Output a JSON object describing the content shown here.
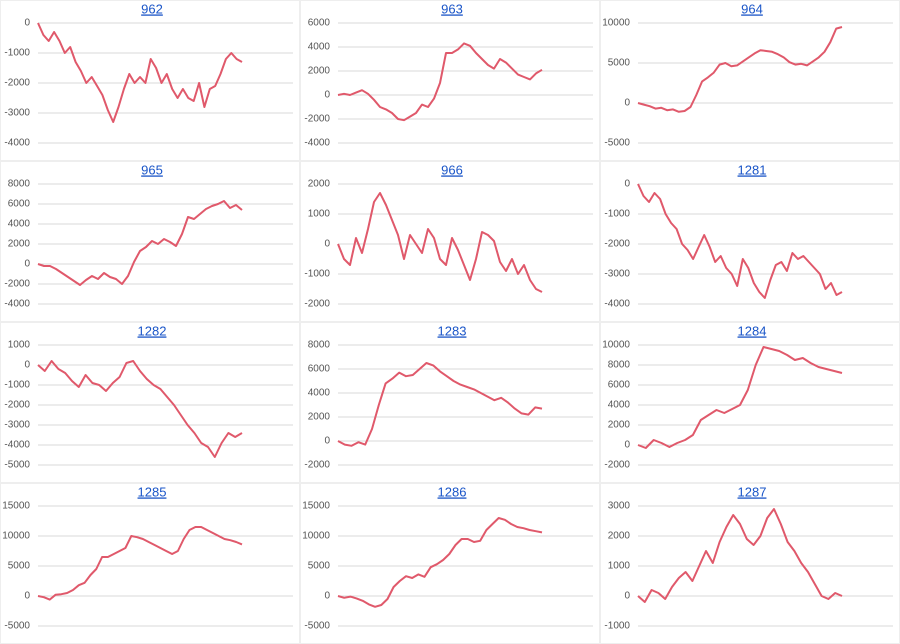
{
  "chart_data": [
    {
      "type": "line",
      "title": "962",
      "color": "#e0596b",
      "ylim": [
        -4000,
        0
      ],
      "yticks": [
        0,
        -1000,
        -2000,
        -3000,
        -4000
      ],
      "grid": true,
      "values": [
        0,
        -400,
        -600,
        -300,
        -600,
        -1000,
        -800,
        -1300,
        -1600,
        -2000,
        -1800,
        -2100,
        -2400,
        -2900,
        -3300,
        -2800,
        -2200,
        -1700,
        -2000,
        -1800,
        -2000,
        -1200,
        -1500,
        -2000,
        -1700,
        -2200,
        -2500,
        -2200,
        -2500,
        -2600,
        -2000,
        -2800,
        -2200,
        -2100,
        -1700,
        -1200,
        -1000,
        -1200,
        -1300
      ]
    },
    {
      "type": "line",
      "title": "963",
      "color": "#e0596b",
      "ylim": [
        -4000,
        6000
      ],
      "yticks": [
        6000,
        4000,
        2000,
        0,
        -2000,
        -4000
      ],
      "grid": true,
      "values": [
        0,
        100,
        0,
        200,
        400,
        100,
        -400,
        -1000,
        -1200,
        -1500,
        -2000,
        -2100,
        -1800,
        -1500,
        -800,
        -1000,
        -300,
        1000,
        3500,
        3500,
        3800,
        4300,
        4100,
        3500,
        3000,
        2500,
        2200,
        3000,
        2700,
        2200,
        1700,
        1500,
        1300,
        1800,
        2100
      ]
    },
    {
      "type": "line",
      "title": "964",
      "color": "#e0596b",
      "ylim": [
        -5000,
        10000
      ],
      "yticks": [
        10000,
        5000,
        0,
        -5000
      ],
      "grid": true,
      "values": [
        0,
        -200,
        -400,
        -700,
        -600,
        -900,
        -800,
        -1100,
        -1000,
        -500,
        1000,
        2700,
        3200,
        3800,
        4800,
        5000,
        4600,
        4700,
        5200,
        5700,
        6200,
        6600,
        6500,
        6400,
        6100,
        5700,
        5100,
        4800,
        4900,
        4700,
        5200,
        5700,
        6400,
        7600,
        9300,
        9500
      ]
    },
    {
      "type": "line",
      "title": "965",
      "color": "#e0596b",
      "ylim": [
        -4000,
        8000
      ],
      "yticks": [
        8000,
        6000,
        4000,
        2000,
        0,
        -2000,
        -4000
      ],
      "grid": true,
      "values": [
        0,
        -200,
        -200,
        -500,
        -900,
        -1300,
        -1700,
        -2100,
        -1600,
        -1200,
        -1500,
        -900,
        -1300,
        -1500,
        -2000,
        -1200,
        200,
        1300,
        1700,
        2300,
        2000,
        2500,
        2200,
        1800,
        3000,
        4700,
        4500,
        5000,
        5500,
        5800,
        6000,
        6300,
        5600,
        5900,
        5400
      ]
    },
    {
      "type": "line",
      "title": "966",
      "color": "#e0596b",
      "ylim": [
        -2000,
        2000
      ],
      "yticks": [
        2000,
        1000,
        0,
        -1000,
        -2000
      ],
      "grid": true,
      "values": [
        0,
        -500,
        -700,
        200,
        -300,
        500,
        1400,
        1700,
        1300,
        800,
        300,
        -500,
        300,
        0,
        -300,
        500,
        200,
        -500,
        -700,
        200,
        -200,
        -700,
        -1200,
        -500,
        400,
        300,
        100,
        -600,
        -900,
        -500,
        -1000,
        -700,
        -1200,
        -1500,
        -1600
      ]
    },
    {
      "type": "line",
      "title": "1281",
      "color": "#e0596b",
      "ylim": [
        -4000,
        0
      ],
      "yticks": [
        0,
        -1000,
        -2000,
        -3000,
        -4000
      ],
      "grid": true,
      "values": [
        0,
        -400,
        -600,
        -300,
        -500,
        -1000,
        -1300,
        -1500,
        -2000,
        -2200,
        -2500,
        -2100,
        -1700,
        -2100,
        -2600,
        -2400,
        -2800,
        -3000,
        -3400,
        -2500,
        -2800,
        -3300,
        -3600,
        -3800,
        -3200,
        -2700,
        -2600,
        -2900,
        -2300,
        -2500,
        -2400,
        -2600,
        -2800,
        -3000,
        -3500,
        -3300,
        -3700,
        -3600
      ]
    },
    {
      "type": "line",
      "title": "1282",
      "color": "#e0596b",
      "ylim": [
        -5000,
        1000
      ],
      "yticks": [
        1000,
        0,
        -1000,
        -2000,
        -3000,
        -4000,
        -5000
      ],
      "grid": true,
      "values": [
        0,
        -300,
        200,
        -200,
        -400,
        -800,
        -1100,
        -500,
        -900,
        -1000,
        -1300,
        -900,
        -600,
        100,
        200,
        -300,
        -700,
        -1000,
        -1200,
        -1600,
        -2000,
        -2500,
        -3000,
        -3400,
        -3900,
        -4100,
        -4600,
        -3900,
        -3400,
        -3600,
        -3400
      ]
    },
    {
      "type": "line",
      "title": "1283",
      "color": "#e0596b",
      "ylim": [
        -2000,
        8000
      ],
      "yticks": [
        8000,
        6000,
        4000,
        2000,
        0,
        -2000
      ],
      "grid": true,
      "values": [
        0,
        -300,
        -400,
        -100,
        -300,
        1000,
        3000,
        4800,
        5200,
        5700,
        5400,
        5500,
        6000,
        6500,
        6300,
        5800,
        5400,
        5000,
        4700,
        4500,
        4300,
        4000,
        3700,
        3400,
        3600,
        3200,
        2700,
        2300,
        2200,
        2800,
        2700
      ]
    },
    {
      "type": "line",
      "title": "1284",
      "color": "#e0596b",
      "ylim": [
        -2000,
        10000
      ],
      "yticks": [
        10000,
        8000,
        6000,
        4000,
        2000,
        0,
        -2000
      ],
      "grid": true,
      "values": [
        0,
        -300,
        500,
        200,
        -200,
        200,
        500,
        1000,
        2500,
        3000,
        3500,
        3200,
        3600,
        4000,
        5500,
        8000,
        9800,
        9600,
        9400,
        9000,
        8500,
        8700,
        8200,
        7800,
        7600,
        7400,
        7200
      ]
    },
    {
      "type": "line",
      "title": "1285",
      "color": "#e0596b",
      "ylim": [
        -5000,
        15000
      ],
      "yticks": [
        15000,
        10000,
        5000,
        0,
        -5000
      ],
      "grid": true,
      "values": [
        0,
        -200,
        -600,
        200,
        300,
        500,
        1000,
        1800,
        2200,
        3500,
        4500,
        6500,
        6500,
        7000,
        7500,
        8000,
        10000,
        9800,
        9500,
        9000,
        8500,
        8000,
        7500,
        7000,
        7500,
        9500,
        11000,
        11500,
        11500,
        11000,
        10500,
        10000,
        9500,
        9300,
        9000,
        8600
      ]
    },
    {
      "type": "line",
      "title": "1286",
      "color": "#e0596b",
      "ylim": [
        -5000,
        15000
      ],
      "yticks": [
        15000,
        10000,
        5000,
        0,
        -5000
      ],
      "grid": true,
      "values": [
        0,
        -300,
        -100,
        -400,
        -800,
        -1400,
        -1800,
        -1500,
        -500,
        1500,
        2500,
        3300,
        3000,
        3600,
        3200,
        4800,
        5300,
        6000,
        7000,
        8500,
        9500,
        9500,
        9000,
        9200,
        11000,
        12000,
        13000,
        12700,
        12000,
        11500,
        11300,
        11000,
        10800,
        10600
      ]
    },
    {
      "type": "line",
      "title": "1287",
      "color": "#e0596b",
      "ylim": [
        -1000,
        3000
      ],
      "yticks": [
        3000,
        2000,
        1000,
        0,
        -1000
      ],
      "grid": true,
      "values": [
        0,
        -200,
        200,
        100,
        -100,
        300,
        600,
        800,
        500,
        1000,
        1500,
        1100,
        1800,
        2300,
        2700,
        2400,
        1900,
        1700,
        2000,
        2600,
        2900,
        2400,
        1800,
        1500,
        1100,
        800,
        400,
        0,
        -100,
        100,
        0
      ]
    }
  ]
}
